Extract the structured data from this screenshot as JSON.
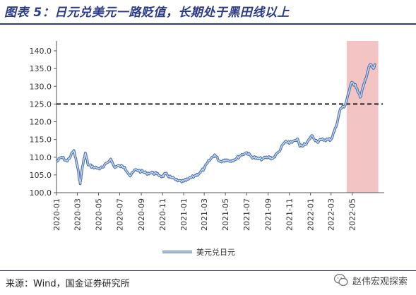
{
  "header": {
    "title": "图表 5：日元兑美元一路贬值，长期处于黑田线以上"
  },
  "footer": {
    "source": "来源：Wind，国金证券研究所",
    "watermark": "赵伟宏观探索"
  },
  "chart_data": {
    "type": "line",
    "title": "",
    "xlabel": "",
    "ylabel": "",
    "ylim": [
      100,
      140
    ],
    "yticks": [
      "100.0",
      "105.0",
      "110.0",
      "115.0",
      "120.0",
      "125.0",
      "130.0",
      "135.0",
      "140.0"
    ],
    "xticks": [
      "2020-01",
      "2020-03",
      "2020-05",
      "2020-07",
      "2020-09",
      "2020-11",
      "2021-01",
      "2021-03",
      "2021-05",
      "2021-07",
      "2021-09",
      "2021-11",
      "2022-01",
      "2022-03",
      "2022-05"
    ],
    "x_range": [
      "2020-01",
      "2022-07"
    ],
    "reference_line": {
      "value": 125,
      "style": "dashed",
      "color": "#000000"
    },
    "shaded_region": {
      "from": "2022-04-15",
      "to": "2022-07-15",
      "color": "#f2c4c4"
    },
    "legend": {
      "position": "bottom",
      "entries": [
        "美元兑日元"
      ]
    },
    "series": [
      {
        "name": "美元兑日元",
        "color": "#6f95c9",
        "points": [
          [
            "2020-01-01",
            108.7
          ],
          [
            "2020-01-15",
            110.0
          ],
          [
            "2020-02-01",
            108.9
          ],
          [
            "2020-02-20",
            111.9
          ],
          [
            "2020-03-02",
            107.0
          ],
          [
            "2020-03-09",
            102.5
          ],
          [
            "2020-03-16",
            107.5
          ],
          [
            "2020-03-24",
            111.2
          ],
          [
            "2020-04-01",
            107.8
          ],
          [
            "2020-04-15",
            107.3
          ],
          [
            "2020-05-01",
            106.8
          ],
          [
            "2020-05-15",
            107.2
          ],
          [
            "2020-06-05",
            109.5
          ],
          [
            "2020-06-15",
            107.3
          ],
          [
            "2020-07-01",
            107.5
          ],
          [
            "2020-07-15",
            107.2
          ],
          [
            "2020-07-31",
            104.7
          ],
          [
            "2020-08-15",
            106.5
          ],
          [
            "2020-09-01",
            106.0
          ],
          [
            "2020-09-15",
            105.5
          ],
          [
            "2020-10-01",
            105.6
          ],
          [
            "2020-10-15",
            105.3
          ],
          [
            "2020-11-01",
            104.6
          ],
          [
            "2020-11-10",
            105.3
          ],
          [
            "2020-11-25",
            104.3
          ],
          [
            "2020-12-15",
            103.3
          ],
          [
            "2021-01-01",
            103.2
          ],
          [
            "2021-01-15",
            103.8
          ],
          [
            "2021-02-01",
            104.7
          ],
          [
            "2021-02-15",
            105.5
          ],
          [
            "2021-03-01",
            106.8
          ],
          [
            "2021-03-15",
            109.0
          ],
          [
            "2021-03-31",
            110.7
          ],
          [
            "2021-04-15",
            108.8
          ],
          [
            "2021-04-30",
            109.3
          ],
          [
            "2021-05-15",
            109.0
          ],
          [
            "2021-06-01",
            109.6
          ],
          [
            "2021-06-15",
            110.6
          ],
          [
            "2021-07-01",
            111.3
          ],
          [
            "2021-07-15",
            110.2
          ],
          [
            "2021-08-01",
            109.6
          ],
          [
            "2021-08-15",
            109.5
          ],
          [
            "2021-09-01",
            110.0
          ],
          [
            "2021-09-15",
            109.7
          ],
          [
            "2021-10-01",
            111.5
          ],
          [
            "2021-10-20",
            114.4
          ],
          [
            "2021-11-01",
            113.9
          ],
          [
            "2021-11-24",
            115.2
          ],
          [
            "2021-12-01",
            113.1
          ],
          [
            "2021-12-20",
            113.7
          ],
          [
            "2022-01-04",
            116.1
          ],
          [
            "2022-01-20",
            114.4
          ],
          [
            "2022-02-01",
            114.9
          ],
          [
            "2022-02-20",
            115.0
          ],
          [
            "2022-03-01",
            115.0
          ],
          [
            "2022-03-15",
            118.5
          ],
          [
            "2022-03-28",
            123.7
          ],
          [
            "2022-04-10",
            124.5
          ],
          [
            "2022-04-28",
            130.9
          ],
          [
            "2022-05-10",
            130.5
          ],
          [
            "2022-05-24",
            126.9
          ],
          [
            "2022-06-05",
            130.9
          ],
          [
            "2022-06-15",
            134.4
          ],
          [
            "2022-06-22",
            136.2
          ],
          [
            "2022-07-01",
            135.0
          ],
          [
            "2022-07-06",
            135.9
          ]
        ]
      }
    ]
  }
}
